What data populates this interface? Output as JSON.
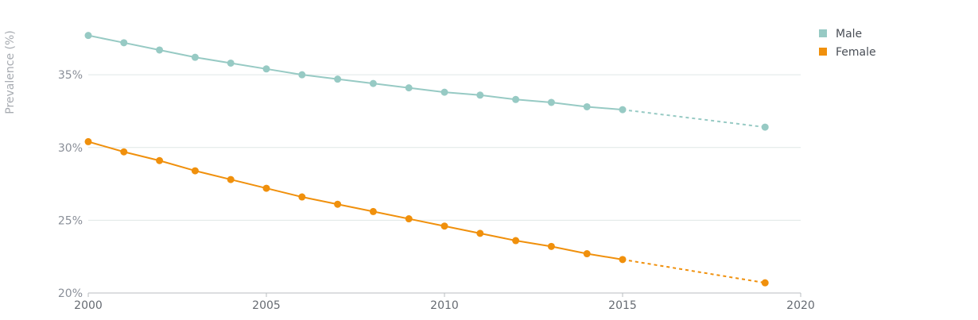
{
  "chart_data": {
    "type": "line",
    "ylabel": "Prevalence (%)",
    "xlim": [
      2000,
      2020
    ],
    "ylim": [
      20,
      38.5
    ],
    "x_ticks": [
      2000,
      2005,
      2010,
      2015,
      2020
    ],
    "y_ticks": [
      20,
      25,
      30,
      35
    ],
    "y_tick_suffix": "%",
    "grid": true,
    "legend_position": "top-right",
    "series": [
      {
        "name": "Male",
        "color": "#97cac4",
        "points": [
          {
            "x": 2000,
            "y": 37.7
          },
          {
            "x": 2001,
            "y": 37.2
          },
          {
            "x": 2002,
            "y": 36.7
          },
          {
            "x": 2003,
            "y": 36.2
          },
          {
            "x": 2004,
            "y": 35.8
          },
          {
            "x": 2005,
            "y": 35.4
          },
          {
            "x": 2006,
            "y": 35.0
          },
          {
            "x": 2007,
            "y": 34.7
          },
          {
            "x": 2008,
            "y": 34.4
          },
          {
            "x": 2009,
            "y": 34.1
          },
          {
            "x": 2010,
            "y": 33.8
          },
          {
            "x": 2011,
            "y": 33.6
          },
          {
            "x": 2012,
            "y": 33.3
          },
          {
            "x": 2013,
            "y": 33.1
          },
          {
            "x": 2014,
            "y": 32.8
          },
          {
            "x": 2015,
            "y": 32.6
          }
        ],
        "projection": [
          {
            "x": 2015,
            "y": 32.6
          },
          {
            "x": 2019,
            "y": 31.4
          }
        ]
      },
      {
        "name": "Female",
        "color": "#f0900c",
        "points": [
          {
            "x": 2000,
            "y": 30.4
          },
          {
            "x": 2001,
            "y": 29.7
          },
          {
            "x": 2002,
            "y": 29.1
          },
          {
            "x": 2003,
            "y": 28.4
          },
          {
            "x": 2004,
            "y": 27.8
          },
          {
            "x": 2005,
            "y": 27.2
          },
          {
            "x": 2006,
            "y": 26.6
          },
          {
            "x": 2007,
            "y": 26.1
          },
          {
            "x": 2008,
            "y": 25.6
          },
          {
            "x": 2009,
            "y": 25.1
          },
          {
            "x": 2010,
            "y": 24.6
          },
          {
            "x": 2011,
            "y": 24.1
          },
          {
            "x": 2012,
            "y": 23.6
          },
          {
            "x": 2013,
            "y": 23.2
          },
          {
            "x": 2014,
            "y": 22.7
          },
          {
            "x": 2015,
            "y": 22.3
          }
        ],
        "projection": [
          {
            "x": 2015,
            "y": 22.3
          },
          {
            "x": 2019,
            "y": 20.7
          }
        ]
      }
    ]
  }
}
